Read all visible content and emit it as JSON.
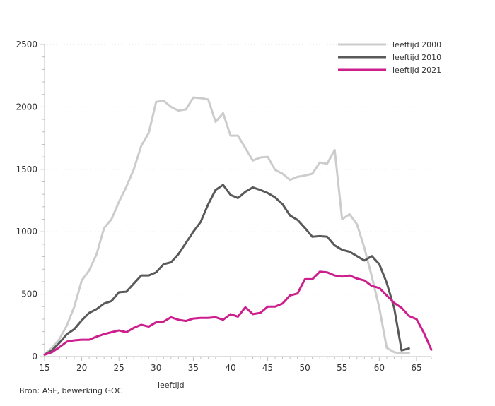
{
  "chart_data": {
    "type": "line",
    "xlabel": "leeftijd",
    "ylabel": "",
    "xlim": [
      15,
      67
    ],
    "ylim": [
      0,
      2500
    ],
    "xticks": [
      15,
      20,
      25,
      30,
      35,
      40,
      45,
      50,
      55,
      60,
      65
    ],
    "yticks": [
      0,
      500,
      1000,
      1500,
      2000,
      2500
    ],
    "grid": "horizontal dotted",
    "legend_position": "top-right",
    "series": [
      {
        "name": "leeftijd 2000",
        "color": "#cccccc",
        "x": [
          15,
          16,
          17,
          18,
          19,
          20,
          21,
          22,
          23,
          24,
          25,
          26,
          27,
          28,
          29,
          30,
          31,
          32,
          33,
          34,
          35,
          36,
          37,
          38,
          39,
          40,
          41,
          42,
          43,
          44,
          45,
          46,
          47,
          48,
          49,
          50,
          51,
          52,
          53,
          54,
          55,
          56,
          57,
          58,
          59,
          60,
          61,
          62,
          63,
          64
        ],
        "y": [
          20,
          70,
          140,
          250,
          400,
          610,
          690,
          820,
          1030,
          1100,
          1240,
          1360,
          1500,
          1690,
          1790,
          2040,
          2050,
          2000,
          1970,
          1980,
          2075,
          2070,
          2060,
          1880,
          1950,
          1770,
          1770,
          1670,
          1570,
          1595,
          1600,
          1495,
          1465,
          1415,
          1440,
          1450,
          1465,
          1555,
          1545,
          1655,
          1100,
          1140,
          1060,
          870,
          640,
          390,
          70,
          35,
          25,
          30
        ]
      },
      {
        "name": "leeftijd 2010",
        "color": "#595959",
        "x": [
          15,
          16,
          17,
          18,
          19,
          20,
          21,
          22,
          23,
          24,
          25,
          26,
          27,
          28,
          29,
          30,
          31,
          32,
          33,
          34,
          35,
          36,
          37,
          38,
          39,
          40,
          41,
          42,
          43,
          44,
          45,
          46,
          47,
          48,
          49,
          50,
          51,
          52,
          53,
          54,
          55,
          56,
          57,
          58,
          59,
          60,
          61,
          62,
          63,
          64
        ],
        "y": [
          15,
          50,
          110,
          180,
          220,
          290,
          350,
          380,
          425,
          445,
          515,
          520,
          585,
          650,
          650,
          675,
          740,
          755,
          820,
          910,
          1000,
          1080,
          1220,
          1335,
          1375,
          1295,
          1270,
          1320,
          1355,
          1335,
          1310,
          1275,
          1220,
          1130,
          1095,
          1030,
          960,
          965,
          960,
          890,
          855,
          840,
          805,
          770,
          805,
          740,
          590,
          390,
          50,
          65
        ]
      },
      {
        "name": "leeftijd 2021",
        "color": "#cc1e8c",
        "x": [
          15,
          16,
          17,
          18,
          19,
          20,
          21,
          22,
          23,
          24,
          25,
          26,
          27,
          28,
          29,
          30,
          31,
          32,
          33,
          34,
          35,
          36,
          37,
          38,
          39,
          40,
          41,
          42,
          43,
          44,
          45,
          46,
          47,
          48,
          49,
          50,
          51,
          52,
          53,
          54,
          55,
          56,
          57,
          58,
          59,
          60,
          61,
          62,
          63,
          64,
          65,
          66,
          67
        ],
        "y": [
          15,
          35,
          75,
          120,
          130,
          135,
          135,
          160,
          180,
          195,
          210,
          195,
          230,
          255,
          240,
          275,
          280,
          315,
          295,
          285,
          305,
          310,
          310,
          315,
          295,
          340,
          320,
          395,
          340,
          350,
          400,
          400,
          425,
          490,
          505,
          620,
          620,
          680,
          675,
          650,
          640,
          650,
          625,
          610,
          565,
          550,
          490,
          430,
          390,
          325,
          300,
          190,
          55
        ]
      }
    ]
  },
  "source": "Bron: ASF, bewerking GOC"
}
